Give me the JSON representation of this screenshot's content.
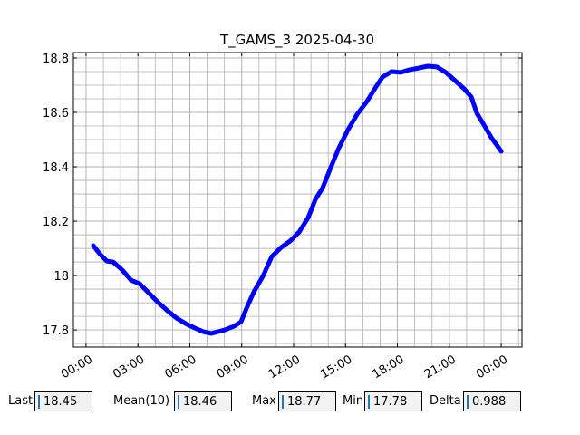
{
  "chart_data": {
    "type": "line",
    "title": "T_GAMS_3 2025-04-30",
    "x": [
      0.42,
      0.79,
      1.2,
      1.57,
      2.1,
      2.6,
      3.1,
      3.67,
      4.19,
      4.72,
      5.24,
      5.77,
      6.29,
      6.8,
      7.23,
      7.6,
      8.02,
      8.54,
      8.96,
      9.28,
      9.7,
      10.22,
      10.74,
      11.27,
      11.8,
      12.32,
      12.84,
      13.26,
      13.68,
      14.1,
      14.62,
      15.15,
      15.67,
      16.2,
      16.72,
      17.14,
      17.66,
      18.19,
      18.71,
      19.23,
      19.76,
      20.28,
      20.8,
      21.33,
      21.85,
      22.27,
      22.59,
      23.01,
      23.43,
      23.74,
      24.0
    ],
    "series": [
      {
        "color": "#0000ff",
        "values": [
          18.11,
          18.08,
          18.053,
          18.05,
          18.02,
          17.983,
          17.97,
          17.933,
          17.9,
          17.87,
          17.843,
          17.823,
          17.807,
          17.793,
          17.787,
          17.793,
          17.8,
          17.813,
          17.83,
          17.88,
          17.94,
          17.997,
          18.07,
          18.103,
          18.127,
          18.16,
          18.213,
          18.28,
          18.323,
          18.39,
          18.47,
          18.537,
          18.593,
          18.637,
          18.69,
          18.73,
          18.75,
          18.747,
          18.757,
          18.763,
          18.77,
          18.767,
          18.747,
          18.717,
          18.687,
          18.657,
          18.597,
          18.553,
          18.507,
          18.48,
          18.457
        ]
      }
    ],
    "xlim": [
      -0.73,
      25.2
    ],
    "ylim": [
      17.737,
      18.82
    ],
    "xticks": [
      {
        "value": 0,
        "label": "00:00"
      },
      {
        "value": 3,
        "label": "03:00"
      },
      {
        "value": 6,
        "label": "06:00"
      },
      {
        "value": 9,
        "label": "09:00"
      },
      {
        "value": 12,
        "label": "12:00"
      },
      {
        "value": 15,
        "label": "15:00"
      },
      {
        "value": 18,
        "label": "18:00"
      },
      {
        "value": 21,
        "label": "21:00"
      },
      {
        "value": 24,
        "label": "00:00"
      }
    ],
    "yticks": [
      17.8,
      18.0,
      18.2,
      18.4,
      18.6,
      18.8
    ],
    "x_minor_ticks": [
      0,
      1,
      2,
      3,
      4,
      5,
      6,
      7,
      8,
      9,
      10,
      11,
      12,
      13,
      14,
      15,
      16,
      17,
      18,
      19,
      20,
      21,
      22,
      23,
      24,
      25
    ],
    "y_minor_ticks": [
      17.75,
      17.8,
      17.85,
      17.9,
      17.95,
      18.0,
      18.05,
      18.1,
      18.15,
      18.2,
      18.25,
      18.3,
      18.35,
      18.4,
      18.45,
      18.5,
      18.55,
      18.6,
      18.65,
      18.7,
      18.75,
      18.8
    ],
    "grid": true
  },
  "widgets": [
    {
      "label": "Last",
      "value": "18.45"
    },
    {
      "label": "Mean(10)",
      "value": "18.46"
    },
    {
      "label": "Max",
      "value": "18.77"
    },
    {
      "label": "Min",
      "value": "17.78"
    },
    {
      "label": "Delta",
      "value": "0.988"
    }
  ]
}
